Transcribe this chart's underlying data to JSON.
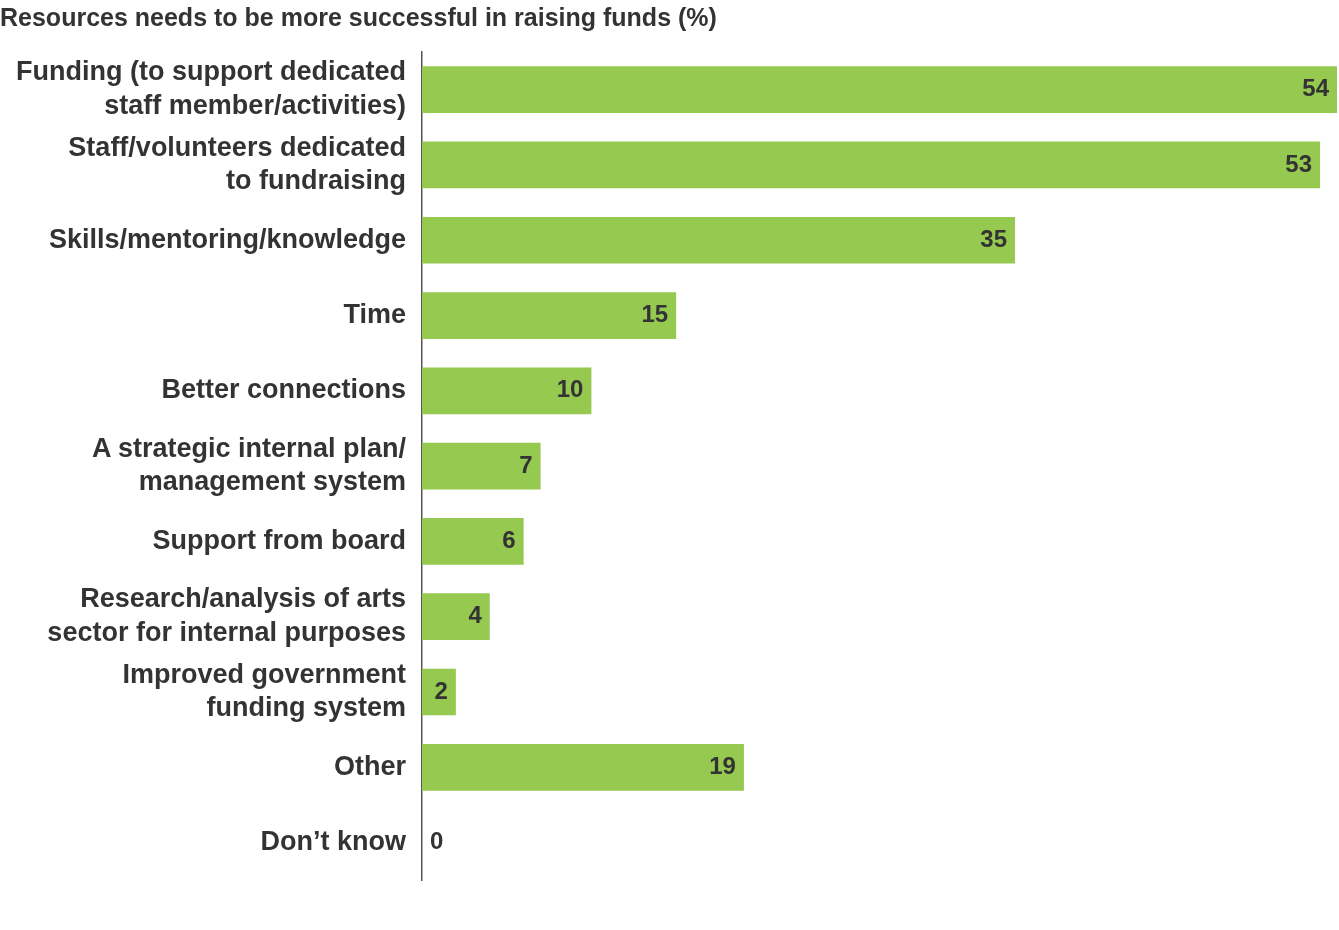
{
  "chart_data": {
    "type": "bar",
    "orientation": "horizontal",
    "title": "Resources needs to be more successful in raising funds (%)",
    "categories": [
      "Funding (to support dedicated\nstaff member/activities)",
      "Staff/volunteers dedicated\nto fundraising",
      "Skills/mentoring/knowledge",
      "Time",
      "Better connections",
      "A strategic internal plan/\nmanagement system",
      "Support from board",
      "Research/analysis of arts\nsector for internal purposes",
      "Improved government\nfunding system",
      "Other",
      "Don’t know"
    ],
    "values": [
      54,
      53,
      35,
      15,
      10,
      7,
      6,
      4,
      2,
      19,
      0
    ],
    "color": "#95c94f",
    "xlim": [
      0,
      54
    ],
    "tick_labels": "y",
    "data_labels": true,
    "legend": false
  }
}
